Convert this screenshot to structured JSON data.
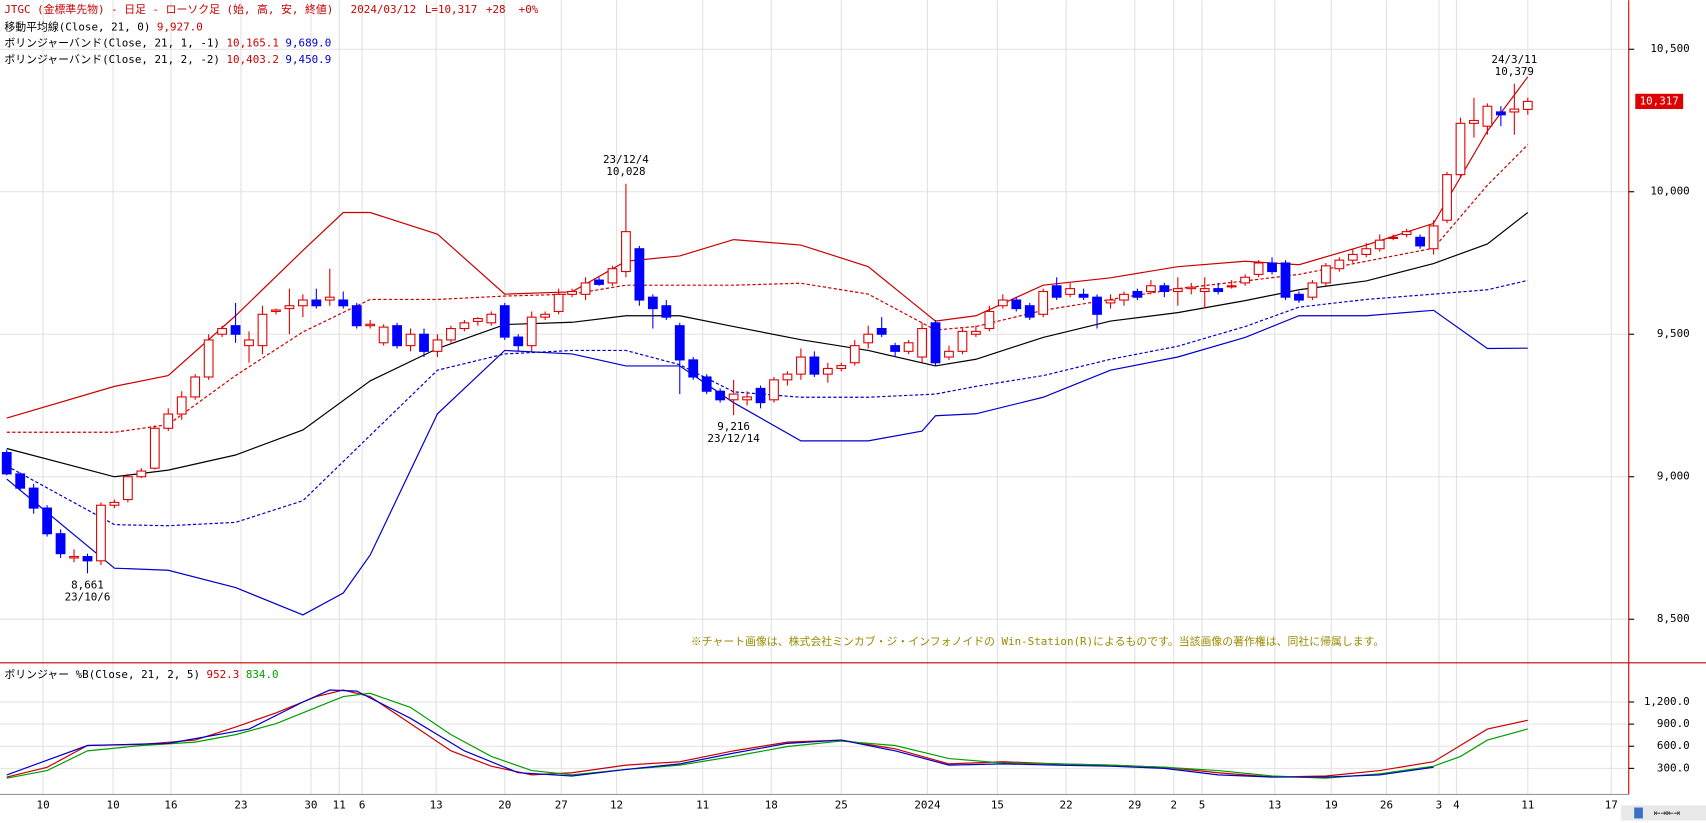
{
  "header": {
    "title": "JTGC (金標準先物) - 日足 - ローソク足 (始, 高, 安, 終値)",
    "date": "2024/03/12",
    "last": "L=10,317",
    "change": "+28",
    "pct": "+0%"
  },
  "legend": [
    {
      "name": "移動平均線(Close, 21, 0)",
      "readings": [
        "9,927.0"
      ],
      "colors": [
        "#cc0000"
      ]
    },
    {
      "name": "ボリンジャーバンド(Close, 21, 1, -1)",
      "readings": [
        "10,165.1",
        "9,689.0"
      ],
      "colors": [
        "#cc0000",
        "#0000cc"
      ]
    },
    {
      "name": "ボリンジャーバンド(Close, 21, 2, -2)",
      "readings": [
        "10,403.2",
        "9,450.9"
      ],
      "colors": [
        "#cc0000",
        "#0000cc"
      ]
    }
  ],
  "note": "※チャート画像は、株式会社ミンカブ・ジ・インフォノイドの Win-Station(R)によるものです。当該画像の著作権は、同社に帰属します。",
  "chart_data": [
    {
      "type": "candlestick",
      "up_color": "#e00000",
      "down_color": "#0000ff",
      "grid": true,
      "xlim": [
        -0.5,
        120.5
      ],
      "ylim": [
        8347,
        10672
      ],
      "yticks": [
        {
          "value": 8500,
          "label": "8,500"
        },
        {
          "value": 9000,
          "label": "9,000"
        },
        {
          "value": 9500,
          "label": "9,500"
        },
        {
          "value": 10000,
          "label": "10,000"
        },
        {
          "value": 10500,
          "label": "10,500"
        }
      ],
      "open": [
        9085,
        9010,
        8960,
        8890,
        8800,
        8715,
        8720,
        8705,
        8900,
        8920,
        9000,
        9030,
        9170,
        9220,
        9280,
        9350,
        9500,
        9530,
        9460,
        9460,
        9580,
        9590,
        9600,
        9620,
        9620,
        9620,
        9600,
        9530,
        9470,
        9530,
        9460,
        9500,
        9440,
        9480,
        9520,
        9545,
        9540,
        9600,
        9490,
        9460,
        9560,
        9580,
        9640,
        9640,
        9690,
        9680,
        9720,
        9800,
        9630,
        9600,
        9530,
        9410,
        9350,
        9300,
        9270,
        9270,
        9310,
        9270,
        9340,
        9360,
        9420,
        9360,
        9380,
        9400,
        9470,
        9520,
        9460,
        9440,
        9420,
        9540,
        9420,
        9440,
        9500,
        9520,
        9600,
        9620,
        9600,
        9570,
        9670,
        9640,
        9640,
        9630,
        9610,
        9620,
        9650,
        9650,
        9670,
        9650,
        9660,
        9650,
        9660,
        9670,
        9680,
        9710,
        9750,
        9750,
        9640,
        9630,
        9680,
        9730,
        9760,
        9780,
        9800,
        9840,
        9850,
        9840,
        9800,
        9900,
        10060,
        10240,
        10230,
        10280,
        10280,
        10289
      ],
      "high": [
        9095,
        9015,
        8975,
        8900,
        8815,
        8745,
        8730,
        8910,
        8920,
        9010,
        9030,
        9180,
        9240,
        9300,
        9360,
        9500,
        9530,
        9610,
        9510,
        9600,
        9590,
        9660,
        9640,
        9660,
        9730,
        9650,
        9610,
        9550,
        9535,
        9540,
        9520,
        9520,
        9500,
        9530,
        9550,
        9560,
        9580,
        9610,
        9500,
        9580,
        9580,
        9660,
        9660,
        9700,
        9700,
        9740,
        10028,
        9810,
        9640,
        9620,
        9540,
        9420,
        9360,
        9310,
        9340,
        9300,
        9320,
        9350,
        9370,
        9450,
        9440,
        9400,
        9400,
        9480,
        9530,
        9560,
        9470,
        9480,
        9540,
        9550,
        9460,
        9520,
        9530,
        9600,
        9640,
        9630,
        9610,
        9660,
        9700,
        9680,
        9660,
        9640,
        9640,
        9650,
        9660,
        9690,
        9680,
        9700,
        9680,
        9700,
        9680,
        9690,
        9710,
        9760,
        9770,
        9760,
        9650,
        9690,
        9750,
        9770,
        9800,
        9820,
        9850,
        9850,
        9870,
        9850,
        9900,
        10070,
        10260,
        10330,
        10310,
        10300,
        10379,
        10330
      ],
      "low": [
        9005,
        8950,
        8870,
        8790,
        8715,
        8700,
        8661,
        8690,
        8890,
        8910,
        8995,
        9025,
        9160,
        9200,
        9270,
        9340,
        9490,
        9470,
        9400,
        9430,
        9570,
        9500,
        9560,
        9590,
        9600,
        9590,
        9520,
        9520,
        9460,
        9450,
        9440,
        9420,
        9420,
        9470,
        9510,
        9530,
        9530,
        9480,
        9440,
        9440,
        9550,
        9570,
        9630,
        9620,
        9670,
        9670,
        9700,
        9600,
        9520,
        9550,
        9290,
        9340,
        9290,
        9260,
        9216,
        9250,
        9240,
        9260,
        9320,
        9340,
        9350,
        9330,
        9370,
        9390,
        9450,
        9490,
        9420,
        9430,
        9400,
        9390,
        9410,
        9430,
        9490,
        9510,
        9590,
        9580,
        9550,
        9560,
        9620,
        9630,
        9620,
        9520,
        9590,
        9600,
        9620,
        9640,
        9630,
        9600,
        9640,
        9590,
        9640,
        9660,
        9670,
        9700,
        9710,
        9620,
        9610,
        9620,
        9670,
        9720,
        9750,
        9770,
        9790,
        9830,
        9840,
        9800,
        9780,
        9890,
        10050,
        10190,
        10200,
        10230,
        10200,
        10270
      ],
      "close": [
        9010,
        8960,
        8890,
        8800,
        8730,
        8720,
        8705,
        8900,
        8910,
        9000,
        9020,
        9170,
        9220,
        9280,
        9350,
        9480,
        9520,
        9500,
        9480,
        9570,
        9585,
        9600,
        9620,
        9600,
        9630,
        9600,
        9530,
        9535,
        9525,
        9460,
        9500,
        9440,
        9480,
        9520,
        9540,
        9555,
        9570,
        9490,
        9460,
        9560,
        9570,
        9640,
        9650,
        9680,
        9675,
        9730,
        9860,
        9620,
        9590,
        9560,
        9410,
        9350,
        9300,
        9270,
        9290,
        9280,
        9260,
        9340,
        9360,
        9420,
        9360,
        9380,
        9390,
        9460,
        9500,
        9500,
        9440,
        9470,
        9520,
        9400,
        9440,
        9510,
        9510,
        9580,
        9620,
        9590,
        9560,
        9650,
        9630,
        9660,
        9630,
        9570,
        9620,
        9640,
        9630,
        9670,
        9650,
        9660,
        9665,
        9660,
        9650,
        9670,
        9700,
        9750,
        9720,
        9630,
        9620,
        9680,
        9740,
        9760,
        9780,
        9800,
        9830,
        9840,
        9860,
        9810,
        9880,
        10060,
        10240,
        10250,
        10300,
        10270,
        10290,
        10317
      ],
      "series": [
        {
          "name": "移動平均線(Close, 21, 0)",
          "color": "#000000",
          "dashed": false,
          "x": [
            0,
            8,
            12,
            17,
            22,
            27,
            32,
            37,
            42,
            46,
            50,
            54,
            59,
            64,
            69,
            72,
            77,
            82,
            87,
            92,
            96,
            101,
            106,
            110,
            113
          ],
          "values": [
            9099,
            9000,
            9023,
            9076,
            9164,
            9336,
            9450,
            9534,
            9542,
            9565,
            9565,
            9527,
            9481,
            9443,
            9389,
            9412,
            9489,
            9546,
            9576,
            9618,
            9656,
            9687,
            9748,
            9817,
            9927
          ]
        },
        {
          "color": "#cc0000",
          "dashed": true,
          "x": [
            0,
            8,
            12,
            17,
            22,
            27,
            32,
            37,
            42,
            46,
            50,
            54,
            59,
            64,
            69,
            72,
            77,
            82,
            87,
            92,
            96,
            101,
            106,
            110,
            113
          ],
          "values": [
            9156,
            9156,
            9183,
            9355,
            9508,
            9622,
            9622,
            9634,
            9641,
            9672,
            9672,
            9672,
            9679,
            9641,
            9515,
            9527,
            9584,
            9622,
            9660,
            9687,
            9710,
            9756,
            9802,
            10023,
            10165.1
          ]
        },
        {
          "color": "#0000cc",
          "dashed": true,
          "x": [
            0,
            8,
            12,
            17,
            22,
            27,
            32,
            37,
            42,
            46,
            50,
            54,
            59,
            64,
            69,
            72,
            77,
            82,
            87,
            92,
            96,
            101,
            106,
            110,
            113
          ],
          "values": [
            9038,
            8832,
            8828,
            8840,
            8916,
            9145,
            9374,
            9431,
            9443,
            9443,
            9393,
            9298,
            9279,
            9279,
            9290,
            9317,
            9355,
            9412,
            9458,
            9527,
            9595,
            9622,
            9641,
            9656,
            9689
          ]
        },
        {
          "color": "#cc0000",
          "dashed": false,
          "x": [
            0,
            8,
            12,
            17,
            22,
            25,
            27,
            32,
            37,
            42,
            46,
            50,
            54,
            59,
            64,
            68,
            69,
            72,
            77,
            82,
            87,
            92,
            96,
            101,
            106,
            110,
            113
          ],
          "values": [
            9206,
            9317,
            9355,
            9565,
            9794,
            9927,
            9927,
            9851,
            9641,
            9649,
            9756,
            9775,
            9832,
            9813,
            9737,
            9584,
            9546,
            9565,
            9672,
            9698,
            9737,
            9756,
            9744,
            9813,
            9889,
            10213,
            10403.2
          ]
        },
        {
          "color": "#0000cc",
          "dashed": false,
          "x": [
            0,
            8,
            12,
            17,
            22,
            25,
            27,
            32,
            37,
            42,
            46,
            50,
            54,
            59,
            64,
            68,
            69,
            72,
            77,
            82,
            87,
            92,
            96,
            101,
            106,
            110,
            113
          ],
          "values": [
            8992,
            8679,
            8672,
            8611,
            8515,
            8592,
            8725,
            9221,
            9443,
            9431,
            9389,
            9389,
            9260,
            9126,
            9126,
            9160,
            9214,
            9221,
            9279,
            9374,
            9420,
            9489,
            9565,
            9565,
            9584,
            9450,
            9450.9
          ]
        }
      ],
      "annotations": [
        {
          "date": "23/10/6",
          "value": 8661,
          "label": "8,661"
        },
        {
          "date": "23/12/4",
          "value": 10028,
          "label": "10,028"
        },
        {
          "date": "23/12/14",
          "value": 9216,
          "label": "9,216"
        },
        {
          "date": "24/3/11",
          "value": 10379,
          "label": "10,379"
        }
      ],
      "last_price": {
        "value": 10317,
        "label": "10,317"
      }
    },
    {
      "type": "line",
      "title": "ボリンジャー %B(Close, 21, 2, 5)",
      "readings": [
        "952.3",
        "834.0"
      ],
      "grid": true,
      "xlim": [
        -0.5,
        120.5
      ],
      "ylim": [
        -54,
        1731
      ],
      "yticks": [
        {
          "value": 300,
          "label": "300.0"
        },
        {
          "value": 600,
          "label": "600.0"
        },
        {
          "value": 900,
          "label": "900.0"
        },
        {
          "value": 1200,
          "label": "1,200.0"
        }
      ],
      "xticks": [
        {
          "value": 2.7,
          "label": "10"
        },
        {
          "value": 7.9,
          "label": "10"
        },
        {
          "value": 12.2,
          "label": "16"
        },
        {
          "value": 17.4,
          "label": "23"
        },
        {
          "value": 22.6,
          "label": "30"
        },
        {
          "value": 24.7,
          "label": "11"
        },
        {
          "value": 26.4,
          "label": "6"
        },
        {
          "value": 31.9,
          "label": "13"
        },
        {
          "value": 37.0,
          "label": "20"
        },
        {
          "value": 41.2,
          "label": "27"
        },
        {
          "value": 45.3,
          "label": "12"
        },
        {
          "value": 51.7,
          "label": "11"
        },
        {
          "value": 56.8,
          "label": "18"
        },
        {
          "value": 62.0,
          "label": "25"
        },
        {
          "value": 68.4,
          "label": "2024"
        },
        {
          "value": 73.6,
          "label": "15"
        },
        {
          "value": 78.7,
          "label": "22"
        },
        {
          "value": 83.8,
          "label": "29"
        },
        {
          "value": 86.7,
          "label": "2"
        },
        {
          "value": 88.8,
          "label": "5"
        },
        {
          "value": 94.2,
          "label": "13"
        },
        {
          "value": 98.4,
          "label": "19"
        },
        {
          "value": 102.5,
          "label": "26"
        },
        {
          "value": 106.4,
          "label": "3"
        },
        {
          "value": 107.7,
          "label": "4"
        },
        {
          "value": 113.0,
          "label": "11"
        },
        {
          "value": 119.2,
          "label": "17"
        }
      ],
      "series": [
        {
          "color": "#cc0000",
          "x": [
            0,
            3,
            6,
            10,
            14,
            17,
            20,
            23,
            25,
            27,
            30,
            33,
            36,
            39,
            42,
            46,
            50,
            54,
            58,
            62,
            66,
            70,
            74,
            78,
            82,
            86,
            90,
            94,
            98,
            102,
            106,
            108,
            110,
            113
          ],
          "values": [
            182,
            315,
            610,
            625,
            684,
            861,
            1052,
            1274,
            1362,
            1274,
            906,
            537,
            330,
            212,
            241,
            345,
            390,
            537,
            655,
            684,
            566,
            360,
            390,
            360,
            345,
            315,
            241,
            182,
            197,
            271,
            390,
            611,
            832,
            952.3
          ]
        },
        {
          "color": "#00a000",
          "x": [
            0,
            3,
            6,
            10,
            14,
            17,
            20,
            23,
            25,
            27,
            30,
            33,
            36,
            39,
            42,
            46,
            50,
            54,
            58,
            62,
            66,
            70,
            74,
            78,
            82,
            86,
            90,
            94,
            98,
            102,
            106,
            108,
            110,
            113
          ],
          "values": [
            168,
            271,
            537,
            610,
            655,
            758,
            906,
            1126,
            1274,
            1318,
            1126,
            758,
            463,
            271,
            212,
            286,
            345,
            463,
            596,
            670,
            610,
            433,
            374,
            360,
            345,
            315,
            271,
            197,
            168,
            227,
            330,
            463,
            684,
            834
          ]
        },
        {
          "color": "#0000cc",
          "x": [
            0,
            6,
            12,
            18,
            22,
            24,
            26,
            30,
            34,
            38,
            42,
            46,
            50,
            54,
            58,
            62,
            66,
            70,
            74,
            78,
            82,
            86,
            90,
            94,
            98,
            102,
            106
          ],
          "values": [
            212,
            610,
            640,
            832,
            1200,
            1362,
            1348,
            979,
            537,
            241,
            197,
            286,
            360,
            507,
            640,
            684,
            537,
            345,
            360,
            345,
            330,
            300,
            212,
            182,
            182,
            212,
            315
          ]
        }
      ]
    }
  ]
}
